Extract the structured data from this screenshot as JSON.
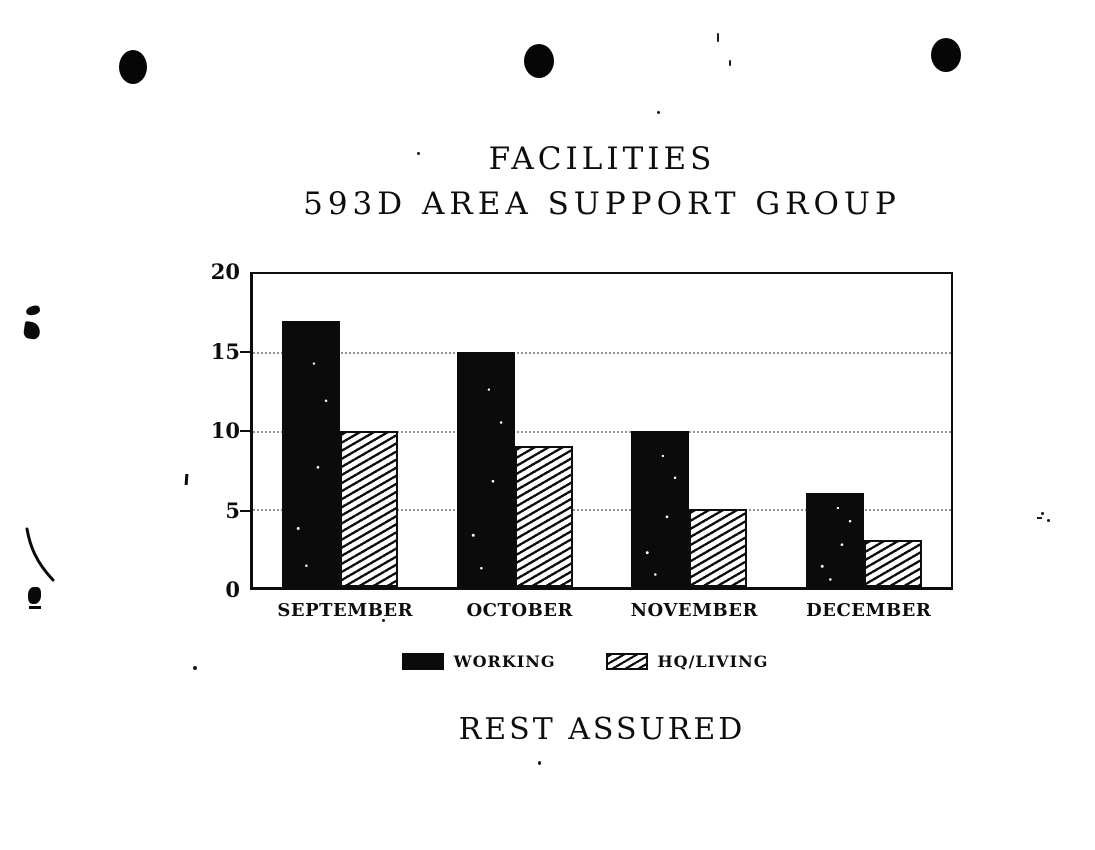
{
  "page": {
    "title_line1": "FACILITIES",
    "title_line2": "593D AREA SUPPORT GROUP",
    "caption": "REST ASSURED"
  },
  "legend": {
    "items": [
      {
        "label": "WORKING",
        "swatch": "solid-black"
      },
      {
        "label": "HQ/LIVING",
        "swatch": "diagonal-hatch"
      }
    ]
  },
  "chart_data": {
    "type": "bar",
    "title": "FACILITIES",
    "subtitle": "593D AREA SUPPORT GROUP",
    "caption": "REST ASSURED",
    "categories": [
      "SEPTEMBER",
      "OCTOBER",
      "NOVEMBER",
      "DECEMBER"
    ],
    "series": [
      {
        "name": "WORKING",
        "style": "solid-black",
        "values": [
          17,
          15,
          10,
          6
        ]
      },
      {
        "name": "HQ/LIVING",
        "style": "diagonal-hatch",
        "values": [
          10,
          9,
          5,
          3
        ]
      }
    ],
    "xlabel": "",
    "ylabel": "",
    "ylim": [
      0,
      20
    ],
    "yticks": [
      0,
      5,
      10,
      15,
      20
    ],
    "grid": "dotted horizontal gridlines at 5, 10, 15",
    "legend_position": "below-chart"
  },
  "colors": {
    "ink": "#0d0d0d",
    "paper": "#ffffff"
  }
}
